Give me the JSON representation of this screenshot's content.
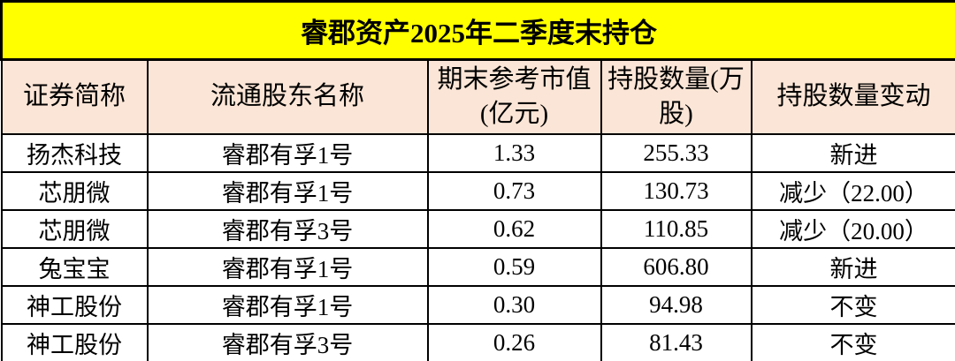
{
  "table": {
    "title": "睿郡资产2025年二季度末持仓",
    "columns": [
      "证券简称",
      "流通股东名称",
      "期末参考市值(亿元)",
      "持股数量(万股)",
      "持股数量变动"
    ],
    "rows": [
      [
        "扬杰科技",
        "睿郡有孚1号",
        "1.33",
        "255.33",
        "新进"
      ],
      [
        "芯朋微",
        "睿郡有孚1号",
        "0.73",
        "130.73",
        "减少（22.00）"
      ],
      [
        "芯朋微",
        "睿郡有孚3号",
        "0.62",
        "110.85",
        "减少（20.00）"
      ],
      [
        "兔宝宝",
        "睿郡有孚1号",
        "0.59",
        "606.80",
        "新进"
      ],
      [
        "神工股份",
        "睿郡有孚1号",
        "0.30",
        "94.98",
        "不变"
      ],
      [
        "神工股份",
        "睿郡有孚3号",
        "0.26",
        "81.43",
        "不变"
      ]
    ]
  },
  "colors": {
    "title_bg": "#FFFF00",
    "header_bg": "#FBE5D6",
    "row_bg": "#FFFFFF",
    "border": "#000000",
    "text": "#000000"
  }
}
